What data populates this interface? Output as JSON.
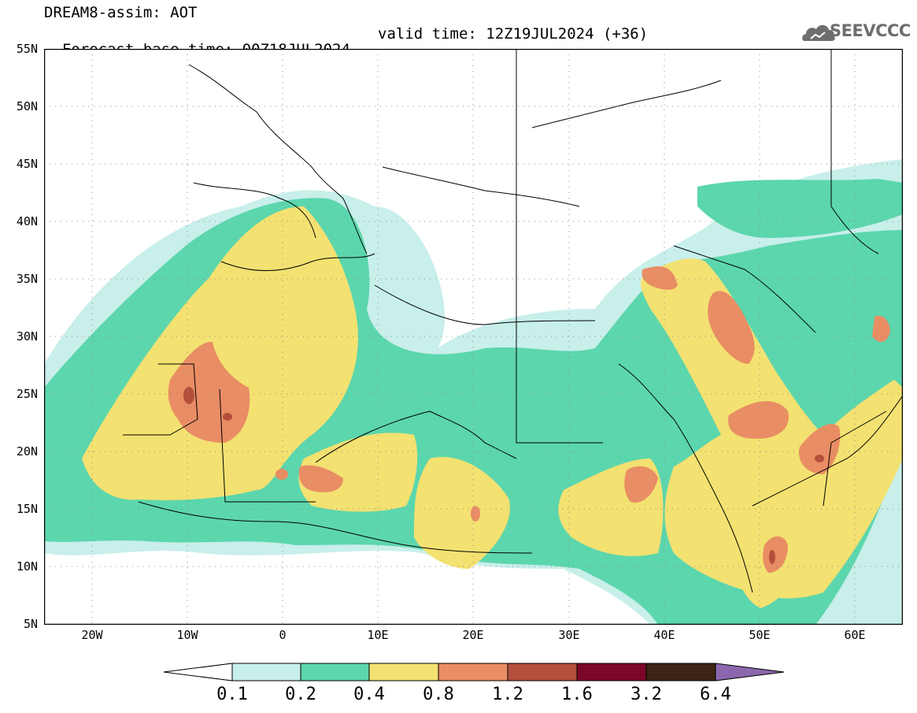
{
  "header": {
    "title": "DREAM8-assim: AOT",
    "base_time": "Forecast base time: 00Z18JUL2024",
    "valid_time": "valid time: 12Z19JUL2024 (+36)"
  },
  "logo": {
    "text": "SEEVCCC",
    "icon": "cloud-logo-icon"
  },
  "map": {
    "variable": "AOT",
    "lon_range": [
      -25,
      65
    ],
    "lat_range": [
      5,
      55
    ],
    "lat_ticks": [
      "55N",
      "50N",
      "45N",
      "40N",
      "35N",
      "30N",
      "25N",
      "20N",
      "15N",
      "10N",
      "5N"
    ],
    "lon_ticks": [
      "20W",
      "10W",
      "0",
      "10E",
      "20E",
      "30E",
      "40E",
      "50E",
      "60E"
    ],
    "gridlines": "dotted"
  },
  "colorbar": {
    "levels": [
      "0.1",
      "0.2",
      "0.4",
      "0.8",
      "1.2",
      "1.6",
      "3.2",
      "6.4"
    ],
    "colors": [
      "#ffffff",
      "#c8efea",
      "#5cd6ad",
      "#f3e171",
      "#e98d64",
      "#b44f3c",
      "#7c0628",
      "#3c2514",
      "#8c67ae"
    ]
  }
}
